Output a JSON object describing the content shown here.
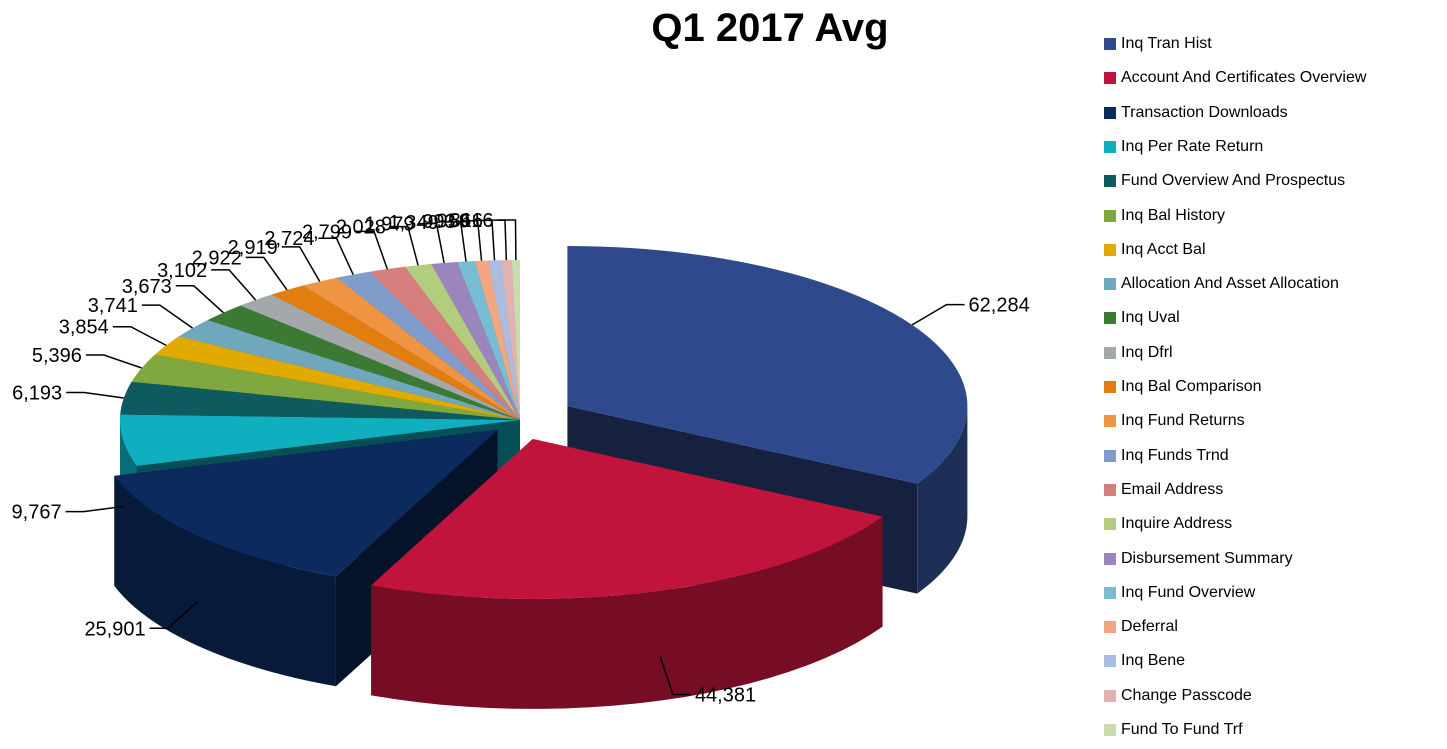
{
  "chart_data": {
    "type": "pie",
    "style": "3d-exploded",
    "title": "Q1 2017 Avg",
    "legend_position": "right",
    "categories": [
      "Inq Tran Hist",
      "Account And Certificates Overview",
      "Transaction Downloads",
      "Inq Per Rate Return",
      "Fund Overview And Prospectus",
      "Inq Bal History",
      "Inq Acct Bal",
      "Allocation And Asset Allocation",
      "Inq Uval",
      "Inq Dfrl",
      "Inq Bal Comparison",
      "Inq Fund Returns",
      "Inq Funds Trnd",
      "Email Address",
      "Inquire Address",
      "Disbursement Summary",
      "Inq Fund Overview",
      "Deferral",
      "Inq Bene",
      "Change Passcode",
      "Fund To Fund Trf"
    ],
    "values": [
      62284,
      44381,
      25901,
      9767,
      6193,
      5396,
      3854,
      3741,
      3673,
      3102,
      2922,
      2919,
      2724,
      2799,
      2028,
      1979,
      1349,
      993,
      959,
      816,
      616
    ],
    "value_labels": [
      "62,284",
      "44,381",
      "25,901",
      "9,767",
      "6,193",
      "5,396",
      "3,854",
      "3,741",
      "3,673",
      "3,102",
      "2,922",
      "2,919",
      "2,724",
      "2,799",
      "2,028",
      "1,979",
      "1,349",
      "993",
      "959",
      "816",
      "616"
    ],
    "colors": [
      "#2E4A8C",
      "#C0143C",
      "#0C2A5E",
      "#10AFBF",
      "#0E5A5E",
      "#7FA93E",
      "#E0AA00",
      "#6FA7BD",
      "#3C7A34",
      "#A3A8AD",
      "#E27D0F",
      "#EE9443",
      "#7F9CCB",
      "#D67E7E",
      "#B2CD7D",
      "#9A86BC",
      "#78BDD3",
      "#F2A780",
      "#AABDE0",
      "#E2B2B2",
      "#C9DBAF"
    ]
  }
}
